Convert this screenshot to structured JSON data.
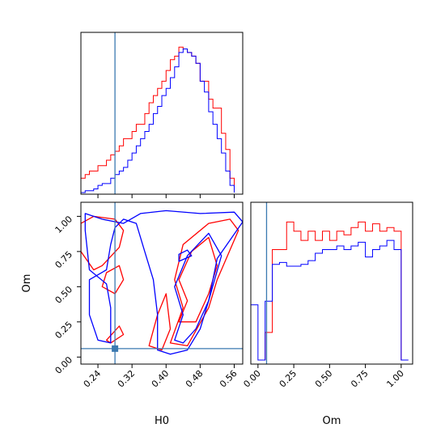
{
  "chart_data": {
    "type": "corner",
    "parameters": [
      "H0",
      "Om"
    ],
    "truth": {
      "H0": 0.28,
      "Om": 0.06,
      "color": "#3a79b0"
    },
    "series_colors": {
      "red": "#ff0000",
      "blue": "#0000ff"
    },
    "panels": {
      "h0_hist": {
        "type": "histogram",
        "xlim": [
          0.2,
          0.58
        ],
        "bin_edges": [
          0.2,
          0.21,
          0.22,
          0.23,
          0.24,
          0.25,
          0.26,
          0.27,
          0.28,
          0.29,
          0.3,
          0.31,
          0.32,
          0.33,
          0.34,
          0.35,
          0.36,
          0.37,
          0.38,
          0.39,
          0.4,
          0.41,
          0.42,
          0.43,
          0.44,
          0.45,
          0.46,
          0.47,
          0.48,
          0.49,
          0.5,
          0.51,
          0.52,
          0.53,
          0.54,
          0.55,
          0.56
        ],
        "red_counts": [
          8,
          10,
          12,
          12,
          15,
          15,
          18,
          21,
          23,
          26,
          30,
          30,
          34,
          38,
          38,
          44,
          50,
          54,
          58,
          62,
          68,
          74,
          76,
          81,
          80,
          78,
          76,
          72,
          62,
          62,
          52,
          47,
          47,
          33,
          24,
          8
        ],
        "blue_counts": [
          0,
          1,
          1,
          2,
          4,
          5,
          5,
          8,
          10,
          12,
          14,
          18,
          22,
          26,
          30,
          34,
          38,
          44,
          48,
          54,
          58,
          64,
          70,
          78,
          80,
          78,
          76,
          72,
          62,
          56,
          45,
          38,
          30,
          22,
          12,
          4
        ],
        "xtick_values": [
          0.24,
          0.32,
          0.4,
          0.48,
          0.56
        ]
      },
      "om_hist": {
        "type": "histogram",
        "xlim": [
          -0.05,
          1.08
        ],
        "bin_edges": [
          -0.05,
          0.0,
          0.05,
          0.1,
          0.15,
          0.2,
          0.25,
          0.3,
          0.35,
          0.4,
          0.45,
          0.5,
          0.55,
          0.6,
          0.65,
          0.7,
          0.75,
          0.8,
          0.85,
          0.9,
          0.95,
          1.0,
          1.05
        ],
        "red_counts": [
          null,
          null,
          15,
          60,
          60,
          75,
          70,
          65,
          70,
          65,
          70,
          65,
          70,
          68,
          72,
          75,
          70,
          74,
          70,
          72,
          70,
          0
        ],
        "blue_counts": [
          30,
          0,
          32,
          52,
          53,
          51,
          51,
          52,
          54,
          58,
          60,
          60,
          62,
          60,
          62,
          64,
          56,
          60,
          62,
          65,
          60,
          0
        ],
        "xtick_labels": [
          "0.00",
          "0.25",
          "0.50",
          "0.75",
          "1.00"
        ],
        "xlabel": "Om"
      },
      "joint": {
        "type": "contour",
        "xlim": [
          0.2,
          0.58
        ],
        "ylim": [
          -0.05,
          1.1
        ],
        "xtick_labels": [
          "0.24",
          "0.32",
          "0.40",
          "0.48",
          "0.56"
        ],
        "ytick_labels": [
          "0.00",
          "0.25",
          "0.50",
          "0.75",
          "1.00"
        ],
        "xlabel": "H0",
        "ylabel": "Om",
        "red_contours": [
          [
            [
              0.25,
              0.65
            ],
            [
              0.29,
              0.78
            ],
            [
              0.3,
              0.9
            ],
            [
              0.28,
              0.98
            ],
            [
              0.23,
              1.0
            ],
            [
              0.2,
              0.95
            ],
            [
              0.2,
              0.75
            ],
            [
              0.23,
              0.62
            ]
          ],
          [
            [
              0.28,
              0.45
            ],
            [
              0.3,
              0.55
            ],
            [
              0.29,
              0.65
            ],
            [
              0.26,
              0.6
            ],
            [
              0.25,
              0.5
            ]
          ],
          [
            [
              0.41,
              0.1
            ],
            [
              0.44,
              0.35
            ],
            [
              0.42,
              0.55
            ],
            [
              0.44,
              0.8
            ],
            [
              0.5,
              0.95
            ],
            [
              0.55,
              0.98
            ],
            [
              0.57,
              0.9
            ],
            [
              0.52,
              0.55
            ],
            [
              0.5,
              0.35
            ],
            [
              0.45,
              0.08
            ]
          ],
          [
            [
              0.43,
              0.25
            ],
            [
              0.45,
              0.4
            ],
            [
              0.43,
              0.55
            ],
            [
              0.46,
              0.75
            ],
            [
              0.5,
              0.85
            ],
            [
              0.52,
              0.65
            ],
            [
              0.5,
              0.45
            ],
            [
              0.47,
              0.25
            ]
          ],
          [
            [
              0.36,
              0.08
            ],
            [
              0.38,
              0.3
            ],
            [
              0.4,
              0.45
            ],
            [
              0.41,
              0.2
            ],
            [
              0.39,
              0.05
            ]
          ],
          [
            [
              0.26,
              0.12
            ],
            [
              0.29,
              0.22
            ],
            [
              0.3,
              0.16
            ],
            [
              0.27,
              0.1
            ]
          ]
        ],
        "blue_contours": [
          [
            [
              0.21,
              1.02
            ],
            [
              0.25,
              0.98
            ],
            [
              0.3,
              0.95
            ],
            [
              0.34,
              1.02
            ],
            [
              0.4,
              1.04
            ],
            [
              0.48,
              1.02
            ],
            [
              0.56,
              1.03
            ],
            [
              0.58,
              0.96
            ],
            [
              0.52,
              0.7
            ],
            [
              0.5,
              0.4
            ],
            [
              0.48,
              0.2
            ],
            [
              0.45,
              0.05
            ],
            [
              0.41,
              0.02
            ],
            [
              0.38,
              0.05
            ],
            [
              0.38,
              0.3
            ],
            [
              0.37,
              0.55
            ],
            [
              0.35,
              0.75
            ],
            [
              0.33,
              0.95
            ],
            [
              0.3,
              0.98
            ],
            [
              0.28,
              0.92
            ],
            [
              0.27,
              0.8
            ],
            [
              0.26,
              0.62
            ],
            [
              0.22,
              0.55
            ],
            [
              0.22,
              0.3
            ],
            [
              0.24,
              0.12
            ],
            [
              0.27,
              0.1
            ],
            [
              0.27,
              0.35
            ],
            [
              0.26,
              0.52
            ],
            [
              0.22,
              0.62
            ],
            [
              0.21,
              0.9
            ]
          ],
          [
            [
              0.42,
              0.12
            ],
            [
              0.44,
              0.3
            ],
            [
              0.42,
              0.5
            ],
            [
              0.45,
              0.72
            ],
            [
              0.5,
              0.88
            ],
            [
              0.53,
              0.72
            ],
            [
              0.5,
              0.4
            ],
            [
              0.47,
              0.2
            ],
            [
              0.44,
              0.1
            ]
          ],
          [
            [
              0.43,
              0.68
            ],
            [
              0.46,
              0.72
            ],
            [
              0.45,
              0.76
            ],
            [
              0.43,
              0.73
            ]
          ]
        ]
      }
    }
  }
}
